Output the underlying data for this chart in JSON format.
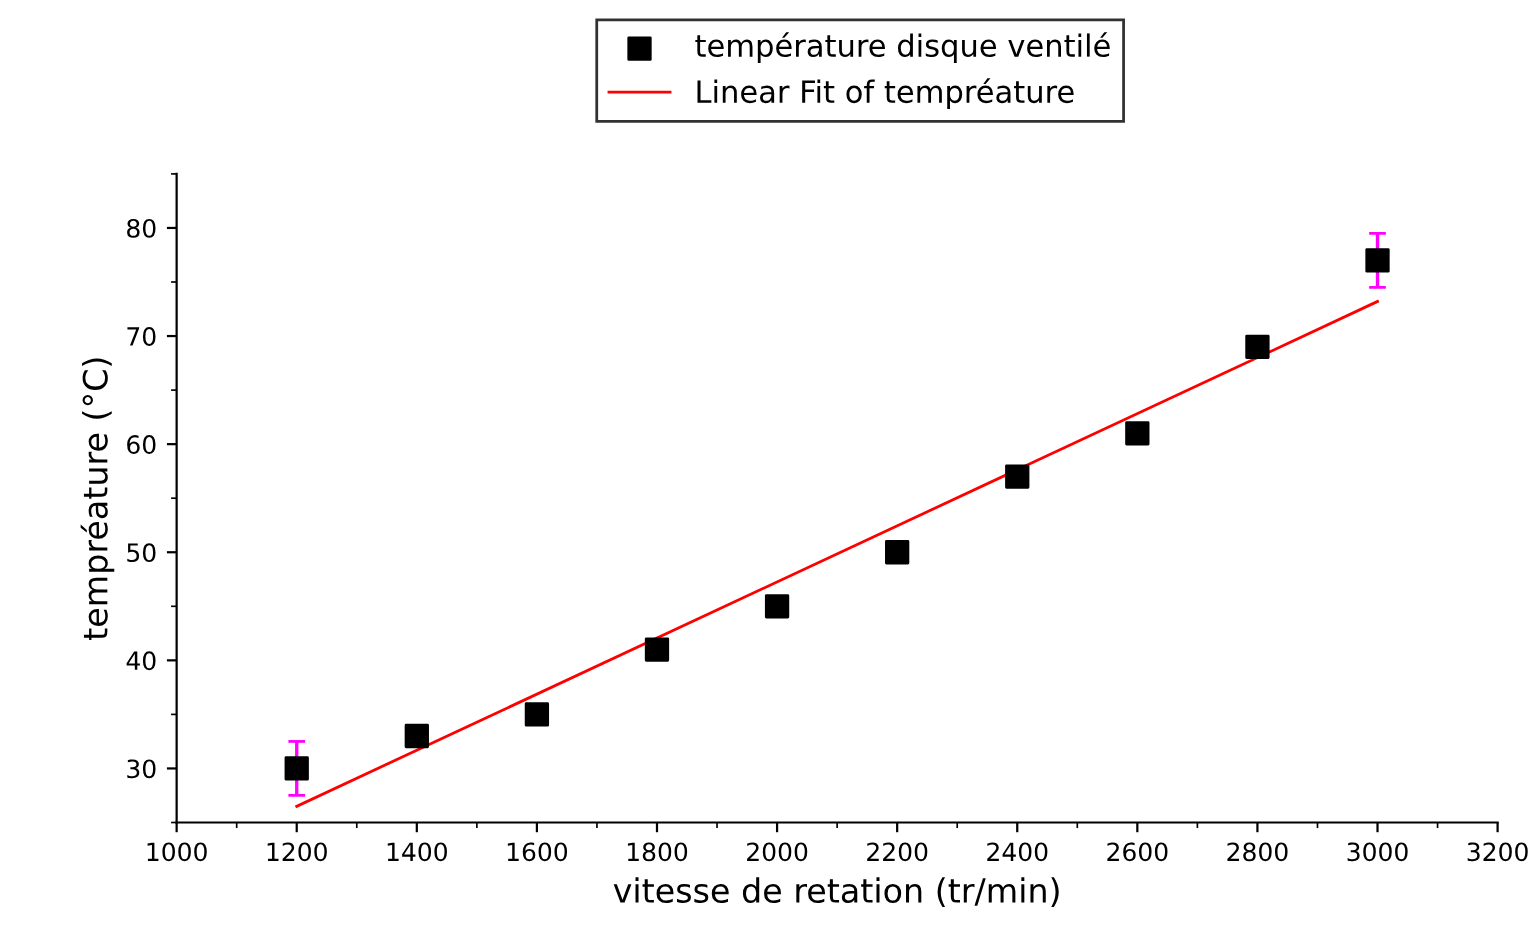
{
  "chart_data": {
    "type": "scatter",
    "xlabel": "vitesse de retation (tr/min)",
    "ylabel": "tempréature (°C)",
    "x": [
      1200,
      1400,
      1600,
      1800,
      2000,
      2200,
      2400,
      2600,
      2800,
      3000
    ],
    "series": [
      {
        "name": "température disque ventilé",
        "marker": "square",
        "color": "#000000",
        "values": [
          30,
          33,
          35,
          41,
          45,
          50,
          57,
          61,
          69,
          77
        ],
        "errors": [
          2.5,
          null,
          null,
          null,
          null,
          null,
          null,
          null,
          null,
          2.5
        ]
      },
      {
        "name": "Linear Fit of tempréature",
        "type": "line",
        "color": "#ff0000",
        "x": [
          1200,
          3000
        ],
        "values": [
          26.5,
          73.2
        ]
      }
    ],
    "xlim": [
      1000,
      3200
    ],
    "xticks": [
      1000,
      1200,
      1400,
      1600,
      1800,
      2000,
      2200,
      2400,
      2600,
      2800,
      3000,
      3200
    ],
    "ylim": [
      25,
      85
    ],
    "yticks": [
      30,
      40,
      50,
      60,
      70,
      80
    ],
    "grid": false,
    "legend": "top"
  }
}
